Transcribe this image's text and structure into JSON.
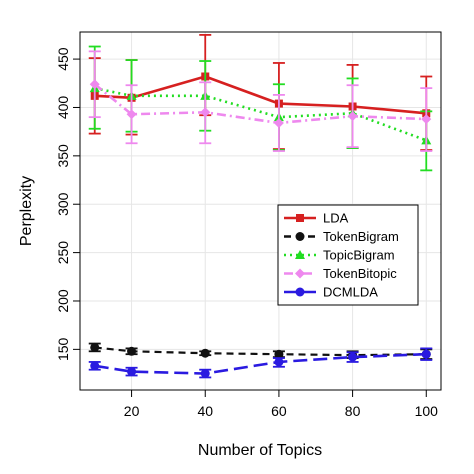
{
  "chart_data": {
    "type": "line",
    "xlabel": "Number of Topics",
    "ylabel": "Perplexity",
    "xlim": [
      6,
      104
    ],
    "ylim": [
      108,
      478
    ],
    "x_ticks": [
      20,
      40,
      60,
      80,
      100
    ],
    "y_ticks": [
      150,
      200,
      250,
      300,
      350,
      400,
      450
    ],
    "grid": true,
    "legend_position": "center-right",
    "x": [
      10,
      20,
      40,
      60,
      80,
      100
    ],
    "series": [
      {
        "name": "LDA",
        "color": "#d62020",
        "style": "solid",
        "marker": "square",
        "values": [
          412,
          410,
          432,
          404,
          401,
          394
        ],
        "err_low": [
          373,
          372,
          392,
          357,
          358,
          356
        ],
        "err_high": [
          451,
          449,
          475,
          446,
          444,
          432
        ]
      },
      {
        "name": "TokenBigram",
        "color": "#111111",
        "style": "dashed",
        "marker": "circle",
        "values": [
          152,
          148,
          146,
          145,
          144,
          145
        ],
        "err_low": [
          148,
          145,
          144,
          142,
          141,
          140
        ],
        "err_high": [
          156,
          151,
          148,
          148,
          148,
          150
        ]
      },
      {
        "name": "TopicBigram",
        "color": "#22dd22",
        "style": "dotted",
        "marker": "triangle",
        "values": [
          420,
          412,
          412,
          390,
          394,
          366
        ],
        "err_low": [
          378,
          375,
          376,
          356,
          358,
          335
        ],
        "err_high": [
          463,
          449,
          448,
          424,
          430,
          396
        ]
      },
      {
        "name": "TokenBitopic",
        "color": "#ee88ee",
        "style": "dashdot",
        "marker": "diamond",
        "values": [
          424,
          393,
          395,
          384,
          391,
          388
        ],
        "err_low": [
          390,
          363,
          363,
          355,
          359,
          355
        ],
        "err_high": [
          458,
          423,
          426,
          413,
          423,
          420
        ]
      },
      {
        "name": "DCMLDA",
        "color": "#2a1ae0",
        "style": "longdash",
        "marker": "circle",
        "values": [
          133,
          127,
          125,
          137,
          142,
          145
        ],
        "err_low": [
          129,
          123,
          121,
          132,
          137,
          139
        ],
        "err_high": [
          137,
          131,
          129,
          141,
          147,
          151
        ]
      }
    ]
  }
}
